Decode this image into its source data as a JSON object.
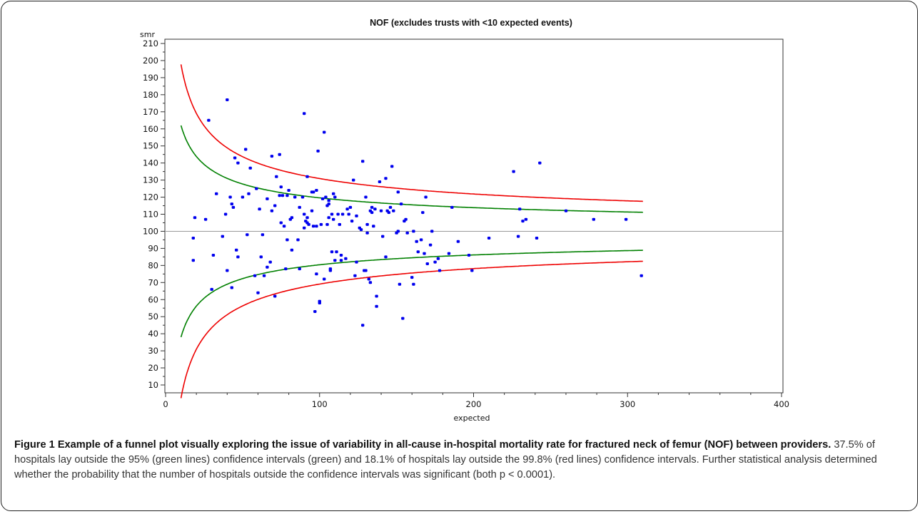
{
  "chart_data": {
    "type": "scatter",
    "title": "NOF (excludes trusts with <10 expected events)",
    "xlabel": "expected",
    "ylabel": "smr",
    "xlim": [
      0,
      400
    ],
    "ylim": [
      10,
      210
    ],
    "xticks": [
      0,
      100,
      200,
      300,
      400
    ],
    "yticks": [
      10,
      20,
      30,
      40,
      50,
      60,
      70,
      80,
      90,
      100,
      110,
      120,
      130,
      140,
      150,
      160,
      170,
      180,
      190,
      200,
      210
    ],
    "grid": false,
    "legend": "none",
    "reference_line": {
      "y": 100,
      "color": "#999999"
    },
    "colors": {
      "points": "#0000ee",
      "ci95": "#008000",
      "ci998": "#ee0000"
    },
    "control_limits": {
      "x_range": [
        10,
        310
      ],
      "ci95": {
        "z": 1.96,
        "color": "#008000"
      },
      "ci998": {
        "z": 3.09,
        "color": "#ee0000"
      }
    },
    "points": [
      [
        18,
        83
      ],
      [
        18,
        96
      ],
      [
        19,
        108
      ],
      [
        26,
        107
      ],
      [
        28,
        165
      ],
      [
        30,
        66
      ],
      [
        31,
        86
      ],
      [
        33,
        122
      ],
      [
        37,
        97
      ],
      [
        39,
        110
      ],
      [
        40,
        77
      ],
      [
        40,
        177
      ],
      [
        42,
        120
      ],
      [
        43,
        67
      ],
      [
        43,
        116
      ],
      [
        44,
        114
      ],
      [
        45,
        143
      ],
      [
        46,
        89
      ],
      [
        47,
        140
      ],
      [
        47,
        85
      ],
      [
        50,
        120
      ],
      [
        52,
        148
      ],
      [
        53,
        98
      ],
      [
        54,
        122
      ],
      [
        55,
        137
      ],
      [
        58,
        74
      ],
      [
        59,
        125
      ],
      [
        60,
        64
      ],
      [
        61,
        113
      ],
      [
        62,
        85
      ],
      [
        63,
        98
      ],
      [
        64,
        74
      ],
      [
        66,
        119
      ],
      [
        66,
        79
      ],
      [
        68,
        82
      ],
      [
        69,
        112
      ],
      [
        69,
        144
      ],
      [
        71,
        115
      ],
      [
        71,
        62
      ],
      [
        72,
        132
      ],
      [
        74,
        121
      ],
      [
        74,
        145
      ],
      [
        75,
        126
      ],
      [
        75,
        105
      ],
      [
        76,
        121
      ],
      [
        77,
        103
      ],
      [
        78,
        78
      ],
      [
        79,
        95
      ],
      [
        79,
        121
      ],
      [
        80,
        124
      ],
      [
        81,
        107
      ],
      [
        82,
        108
      ],
      [
        82,
        89
      ],
      [
        84,
        120
      ],
      [
        86,
        95
      ],
      [
        87,
        114
      ],
      [
        87,
        78
      ],
      [
        89,
        120
      ],
      [
        90,
        169
      ],
      [
        90,
        102
      ],
      [
        90,
        110
      ],
      [
        91,
        106
      ],
      [
        92,
        132
      ],
      [
        92,
        105
      ],
      [
        92,
        108
      ],
      [
        93,
        104
      ],
      [
        95,
        123
      ],
      [
        95,
        112
      ],
      [
        96,
        123
      ],
      [
        96,
        103
      ],
      [
        97,
        53
      ],
      [
        98,
        124
      ],
      [
        98,
        103
      ],
      [
        98,
        75
      ],
      [
        99,
        147
      ],
      [
        100,
        59
      ],
      [
        100,
        58
      ],
      [
        101,
        104
      ],
      [
        102,
        119
      ],
      [
        103,
        72
      ],
      [
        103,
        158
      ],
      [
        104,
        120
      ],
      [
        105,
        115
      ],
      [
        105,
        104
      ],
      [
        106,
        118
      ],
      [
        106,
        116
      ],
      [
        106,
        108
      ],
      [
        107,
        78
      ],
      [
        107,
        77
      ],
      [
        108,
        110
      ],
      [
        108,
        88
      ],
      [
        109,
        122
      ],
      [
        109,
        107
      ],
      [
        110,
        83
      ],
      [
        110,
        120
      ],
      [
        111,
        88
      ],
      [
        112,
        110
      ],
      [
        113,
        104
      ],
      [
        114,
        83
      ],
      [
        114,
        86
      ],
      [
        115,
        110
      ],
      [
        117,
        84
      ],
      [
        118,
        113
      ],
      [
        119,
        110
      ],
      [
        120,
        114
      ],
      [
        121,
        106
      ],
      [
        122,
        130
      ],
      [
        123,
        74
      ],
      [
        124,
        109
      ],
      [
        124,
        82
      ],
      [
        126,
        102
      ],
      [
        127,
        101
      ],
      [
        128,
        141
      ],
      [
        128,
        45
      ],
      [
        129,
        77
      ],
      [
        130,
        77
      ],
      [
        130,
        120
      ],
      [
        131,
        104
      ],
      [
        131,
        99
      ],
      [
        132,
        72
      ],
      [
        133,
        112
      ],
      [
        133,
        70
      ],
      [
        134,
        114
      ],
      [
        134,
        111
      ],
      [
        135,
        103
      ],
      [
        136,
        113
      ],
      [
        137,
        56
      ],
      [
        137,
        62
      ],
      [
        139,
        129
      ],
      [
        140,
        112
      ],
      [
        141,
        97
      ],
      [
        143,
        131
      ],
      [
        143,
        85
      ],
      [
        144,
        112
      ],
      [
        145,
        111
      ],
      [
        146,
        114
      ],
      [
        147,
        138
      ],
      [
        148,
        112
      ],
      [
        150,
        99
      ],
      [
        151,
        123
      ],
      [
        151,
        100
      ],
      [
        152,
        69
      ],
      [
        153,
        116
      ],
      [
        154,
        49
      ],
      [
        155,
        106
      ],
      [
        156,
        107
      ],
      [
        157,
        99
      ],
      [
        160,
        73
      ],
      [
        161,
        100
      ],
      [
        161,
        69
      ],
      [
        163,
        94
      ],
      [
        164,
        88
      ],
      [
        166,
        95
      ],
      [
        167,
        111
      ],
      [
        168,
        87
      ],
      [
        169,
        120
      ],
      [
        170,
        81
      ],
      [
        172,
        92
      ],
      [
        173,
        100
      ],
      [
        175,
        82
      ],
      [
        177,
        84
      ],
      [
        178,
        77
      ],
      [
        184,
        87
      ],
      [
        186,
        114
      ],
      [
        190,
        94
      ],
      [
        197,
        86
      ],
      [
        199,
        77
      ],
      [
        210,
        96
      ],
      [
        226,
        135
      ],
      [
        229,
        97
      ],
      [
        230,
        113
      ],
      [
        232,
        106
      ],
      [
        234,
        107
      ],
      [
        241,
        96
      ],
      [
        243,
        140
      ],
      [
        260,
        112
      ],
      [
        278,
        107
      ],
      [
        299,
        107
      ],
      [
        309,
        74
      ]
    ]
  },
  "caption": {
    "label": "Figure 1",
    "title": "Example of a funnel plot visually exploring the issue of variability in all-cause in-hospital mortality rate for fractured neck of femur (NOF) between providers.",
    "body": "37.5% of hospitals lay outside the 95% (green lines) confidence intervals (green) and 18.1% of hospitals lay outside the 99.8% (red lines) confidence intervals. Further statistical analysis determined whether the probability that the number of hospitals outside the confidence intervals was significant (both p < 0.0001)."
  }
}
